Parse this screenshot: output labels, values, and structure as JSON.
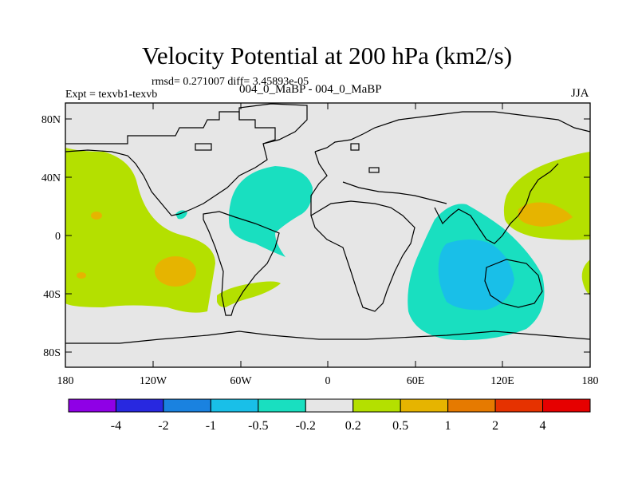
{
  "title": "Velocity Potential at 200 hPa (km2/s)",
  "stats_line": "rmsd= 0.271007 diff= 3.45893e-05",
  "experiment_label": "Expt = texvb1-texvb",
  "subtitle": "004_0_MaBP - 004_0_MaBP",
  "season": "JJA",
  "axes": {
    "y_ticks": [
      "80N",
      "40N",
      "0",
      "40S",
      "80S"
    ],
    "x_ticks": [
      "180",
      "120W",
      "60W",
      "0",
      "60E",
      "120E",
      "180"
    ]
  },
  "colorbar": {
    "labels": [
      "-4",
      "-2",
      "-1",
      "-0.5",
      "-0.2",
      "0.2",
      "0.5",
      "1",
      "2",
      "4"
    ],
    "colors": [
      "#8f00e6",
      "#2828e0",
      "#1a82e0",
      "#19bfe8",
      "#19dfc0",
      "#e6e6e6",
      "#b4e000",
      "#e6b400",
      "#e67a00",
      "#e63200",
      "#e60000"
    ]
  },
  "colors": {
    "background": "#e6e6e6",
    "positive_weak": "#b4e000",
    "positive_mid": "#e6b400",
    "negative_weak": "#19dfc0",
    "negative_mid": "#19bfe8"
  }
}
